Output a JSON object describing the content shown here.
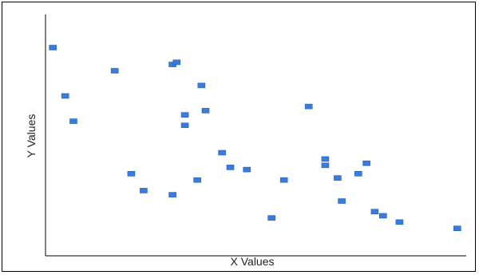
{
  "chart_data": {
    "type": "scatter",
    "title": "",
    "xlabel": "X Values",
    "ylabel": "Y Values",
    "grid": false,
    "legend": "none",
    "xlim": [
      0,
      100
    ],
    "ylim": [
      0,
      100
    ],
    "marker_color": "#3a7bdc",
    "series": [
      {
        "points": [
          {
            "x": 1,
            "y": 96
          },
          {
            "x": 4,
            "y": 73
          },
          {
            "x": 6,
            "y": 61
          },
          {
            "x": 16,
            "y": 85
          },
          {
            "x": 20,
            "y": 36
          },
          {
            "x": 23,
            "y": 28
          },
          {
            "x": 30,
            "y": 88
          },
          {
            "x": 31,
            "y": 89
          },
          {
            "x": 30,
            "y": 26
          },
          {
            "x": 33,
            "y": 64
          },
          {
            "x": 33,
            "y": 59
          },
          {
            "x": 36,
            "y": 33
          },
          {
            "x": 37,
            "y": 78
          },
          {
            "x": 38,
            "y": 66
          },
          {
            "x": 42,
            "y": 46
          },
          {
            "x": 44,
            "y": 39
          },
          {
            "x": 48,
            "y": 38
          },
          {
            "x": 54,
            "y": 15
          },
          {
            "x": 57,
            "y": 33
          },
          {
            "x": 63,
            "y": 68
          },
          {
            "x": 67,
            "y": 43
          },
          {
            "x": 67,
            "y": 40
          },
          {
            "x": 70,
            "y": 34
          },
          {
            "x": 71,
            "y": 23
          },
          {
            "x": 75,
            "y": 36
          },
          {
            "x": 77,
            "y": 41
          },
          {
            "x": 79,
            "y": 18
          },
          {
            "x": 81,
            "y": 16
          },
          {
            "x": 85,
            "y": 13
          },
          {
            "x": 99,
            "y": 10
          }
        ]
      }
    ]
  }
}
